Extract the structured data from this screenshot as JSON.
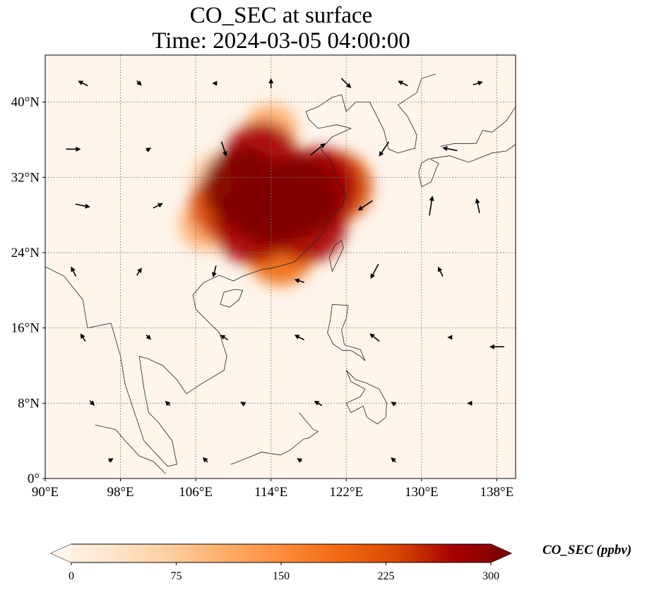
{
  "title": {
    "line1": "CO_SEC at surface",
    "line2": "Time: 2024-03-05 04:00:00"
  },
  "colorbar": {
    "label": "CO_SEC (ppbv)",
    "ticks": [
      "0",
      "75",
      "150",
      "225",
      "300"
    ],
    "min": 0,
    "max": 300,
    "colors": [
      "#fff5eb",
      "#fee6ce",
      "#fdd0a2",
      "#fdae6b",
      "#fd8d3c",
      "#f16913",
      "#d94801",
      "#a60000",
      "#7f0000"
    ]
  },
  "map": {
    "lon_range": [
      90,
      140
    ],
    "lat_range": [
      0,
      45
    ],
    "lon_ticks": [
      {
        "value": 90,
        "label": "90°E"
      },
      {
        "value": 98,
        "label": "98°E"
      },
      {
        "value": 106,
        "label": "106°E"
      },
      {
        "value": 114,
        "label": "114°E"
      },
      {
        "value": 122,
        "label": "122°E"
      },
      {
        "value": 130,
        "label": "130°E"
      },
      {
        "value": 138,
        "label": "138°E"
      }
    ],
    "lat_ticks": [
      {
        "value": 0,
        "label": "0°"
      },
      {
        "value": 8,
        "label": "8°N"
      },
      {
        "value": 16,
        "label": "16°N"
      },
      {
        "value": 24,
        "label": "24°N"
      },
      {
        "value": 32,
        "label": "32°N"
      },
      {
        "value": 40,
        "label": "40°N"
      }
    ],
    "gridlines": true,
    "background_color": "#fff5eb",
    "plume": [
      {
        "lon": 114,
        "lat": 29,
        "value": 300
      },
      {
        "lon": 117,
        "lat": 30,
        "value": 300
      },
      {
        "lon": 111,
        "lat": 31,
        "value": 290
      },
      {
        "lon": 112,
        "lat": 27,
        "value": 280
      },
      {
        "lon": 119,
        "lat": 31,
        "value": 280
      },
      {
        "lon": 113,
        "lat": 34,
        "value": 250
      },
      {
        "lon": 118,
        "lat": 27,
        "value": 260
      },
      {
        "lon": 109,
        "lat": 29,
        "value": 220
      },
      {
        "lon": 115,
        "lat": 24,
        "value": 200
      },
      {
        "lon": 121,
        "lat": 31,
        "value": 230
      },
      {
        "lon": 114,
        "lat": 37,
        "value": 120
      },
      {
        "lon": 107,
        "lat": 27,
        "value": 110
      },
      {
        "lon": 108,
        "lat": 32,
        "value": 90
      }
    ],
    "wind": [
      {
        "lon": 94,
        "lat": 42,
        "u": -1,
        "v": 0.5
      },
      {
        "lon": 100,
        "lat": 42,
        "u": 0.5,
        "v": -0.5
      },
      {
        "lon": 108,
        "lat": 42,
        "u": -0.5,
        "v": 0
      },
      {
        "lon": 114,
        "lat": 42,
        "u": 0,
        "v": 1
      },
      {
        "lon": 122,
        "lat": 42,
        "u": 1,
        "v": -1
      },
      {
        "lon": 128,
        "lat": 42,
        "u": -1,
        "v": 0.5
      },
      {
        "lon": 136,
        "lat": 42,
        "u": 1,
        "v": 0.3
      },
      {
        "lon": 93,
        "lat": 35,
        "u": 1.5,
        "v": 0
      },
      {
        "lon": 101,
        "lat": 35,
        "u": 0.5,
        "v": 0.3
      },
      {
        "lon": 109,
        "lat": 35,
        "u": 0.5,
        "v": -1.5
      },
      {
        "lon": 119,
        "lat": 35,
        "u": 1.5,
        "v": 1.2
      },
      {
        "lon": 126,
        "lat": 35,
        "u": -1,
        "v": -1.5
      },
      {
        "lon": 133,
        "lat": 35,
        "u": -1.5,
        "v": 0.3
      },
      {
        "lon": 94,
        "lat": 29,
        "u": 1.5,
        "v": -0.3
      },
      {
        "lon": 102,
        "lat": 29,
        "u": 1,
        "v": 0.5
      },
      {
        "lon": 124,
        "lat": 29,
        "u": -1.5,
        "v": -1
      },
      {
        "lon": 131,
        "lat": 29,
        "u": 0.3,
        "v": 2
      },
      {
        "lon": 136,
        "lat": 29,
        "u": -0.3,
        "v": 1.5
      },
      {
        "lon": 93,
        "lat": 22,
        "u": -0.5,
        "v": 1
      },
      {
        "lon": 100,
        "lat": 22,
        "u": 0.5,
        "v": 0.8
      },
      {
        "lon": 108,
        "lat": 22,
        "u": -0.3,
        "v": -1.2
      },
      {
        "lon": 117,
        "lat": 21,
        "u": -1,
        "v": 0.3
      },
      {
        "lon": 125,
        "lat": 22,
        "u": -0.8,
        "v": -1.5
      },
      {
        "lon": 132,
        "lat": 22,
        "u": -0.5,
        "v": 1
      },
      {
        "lon": 94,
        "lat": 15,
        "u": -0.5,
        "v": 0.8
      },
      {
        "lon": 101,
        "lat": 15,
        "u": 0.5,
        "v": -0.5
      },
      {
        "lon": 109,
        "lat": 15,
        "u": -0.8,
        "v": 0.5
      },
      {
        "lon": 117,
        "lat": 15,
        "u": -1,
        "v": 0.5
      },
      {
        "lon": 125,
        "lat": 15,
        "u": -1,
        "v": 0.8
      },
      {
        "lon": 133,
        "lat": 15,
        "u": -0.5,
        "v": 0
      },
      {
        "lon": 138,
        "lat": 14,
        "u": -1.5,
        "v": 0
      },
      {
        "lon": 95,
        "lat": 8,
        "u": 0.5,
        "v": -0.5
      },
      {
        "lon": 103,
        "lat": 8,
        "u": -0.5,
        "v": 0.5
      },
      {
        "lon": 111,
        "lat": 8,
        "u": -0.5,
        "v": 0.3
      },
      {
        "lon": 119,
        "lat": 8,
        "u": -0.8,
        "v": 0.5
      },
      {
        "lon": 127,
        "lat": 8,
        "u": -0.5,
        "v": 0.3
      },
      {
        "lon": 135,
        "lat": 8,
        "u": -0.3,
        "v": 0
      },
      {
        "lon": 97,
        "lat": 2,
        "u": 0.5,
        "v": 0.3
      },
      {
        "lon": 107,
        "lat": 2,
        "u": -0.5,
        "v": 0.5
      },
      {
        "lon": 117,
        "lat": 2,
        "u": -0.5,
        "v": 0.3
      },
      {
        "lon": 127,
        "lat": 2,
        "u": -0.5,
        "v": 0.5
      }
    ]
  }
}
